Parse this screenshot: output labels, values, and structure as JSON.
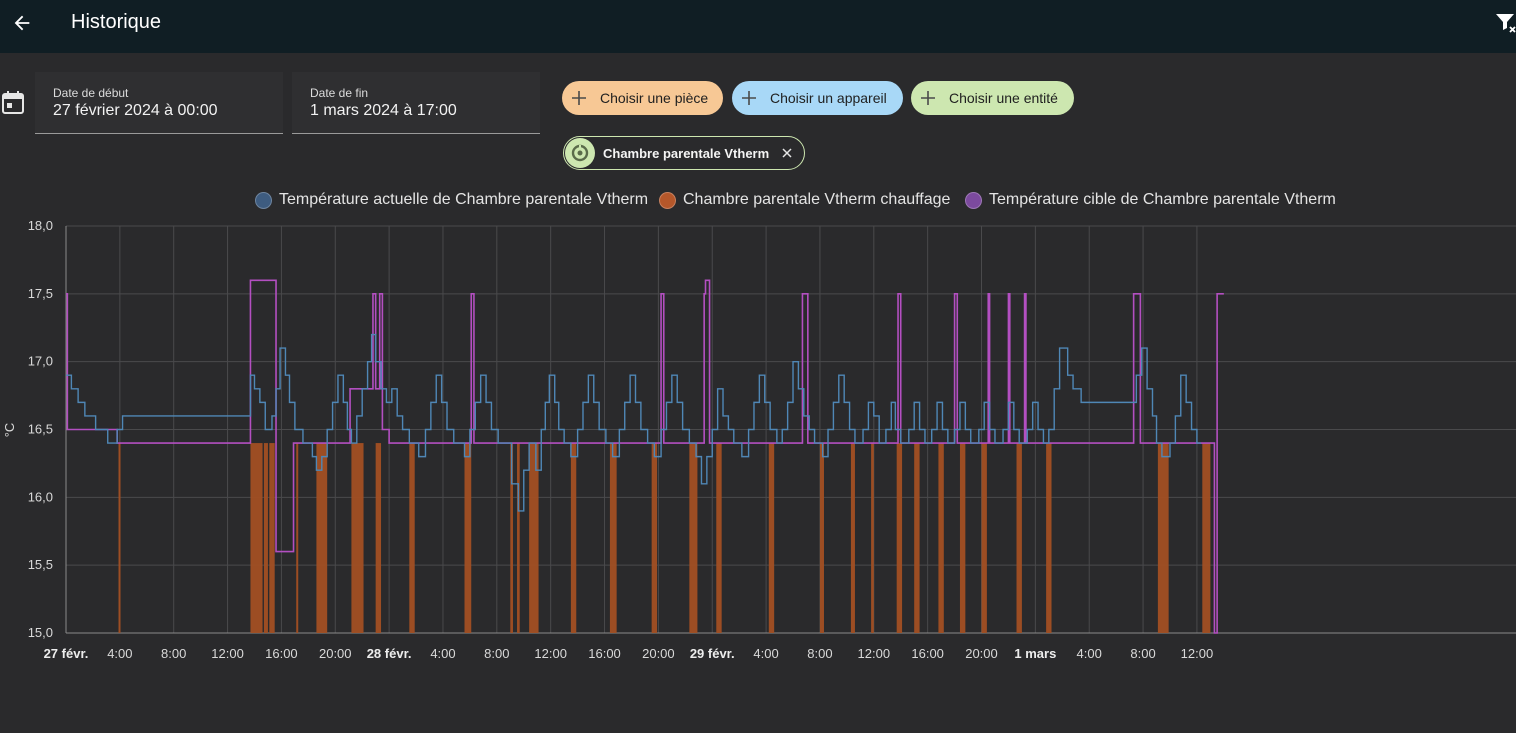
{
  "header": {
    "title": "Historique"
  },
  "date_start": {
    "label": "Date de début",
    "value": "27 février 2024 à 00:00"
  },
  "date_end": {
    "label": "Date de fin",
    "value": "1 mars 2024 à 17:00"
  },
  "pickers": {
    "room": "Choisir une pièce",
    "device": "Choisir un appareil",
    "entity": "Choisir une entité"
  },
  "selected": {
    "name": "Chambre parentale Vtherm"
  },
  "legend": [
    {
      "label": "Température actuelle de Chambre parentale Vtherm",
      "color": "#3e5c80"
    },
    {
      "label": "Chambre parentale Vtherm chauffage",
      "color": "#b5572a"
    },
    {
      "label": "Température cible de Chambre parentale Vtherm",
      "color": "#7c4a9e"
    }
  ],
  "colors": {
    "topbar": "#101e24",
    "actual_line": "#4f87b6",
    "heating_fill": "#a24f23",
    "target_line": "#b34fc1",
    "chip_room": "#f7c895",
    "chip_device": "#a8d8f7",
    "chip_entity": "#cde7b0"
  },
  "chart_data": {
    "type": "line",
    "ylabel": "°C",
    "ylim": [
      15.0,
      18.0
    ],
    "xlim_hours": [
      0,
      107.7
    ],
    "y_ticks": [
      "15,0",
      "15,5",
      "16,0",
      "16,5",
      "17,0",
      "17,5",
      "18,0"
    ],
    "x_ticks": [
      {
        "h": 0,
        "label": "27 févr.",
        "major": true
      },
      {
        "h": 4,
        "label": "4:00"
      },
      {
        "h": 8,
        "label": "8:00"
      },
      {
        "h": 12,
        "label": "12:00"
      },
      {
        "h": 16,
        "label": "16:00"
      },
      {
        "h": 20,
        "label": "20:00"
      },
      {
        "h": 24,
        "label": "28 févr.",
        "major": true
      },
      {
        "h": 28,
        "label": "4:00"
      },
      {
        "h": 32,
        "label": "8:00"
      },
      {
        "h": 36,
        "label": "12:00"
      },
      {
        "h": 40,
        "label": "16:00"
      },
      {
        "h": 44,
        "label": "20:00"
      },
      {
        "h": 48,
        "label": "29 févr.",
        "major": true
      },
      {
        "h": 52,
        "label": "4:00"
      },
      {
        "h": 56,
        "label": "8:00"
      },
      {
        "h": 60,
        "label": "12:00"
      },
      {
        "h": 64,
        "label": "16:00"
      },
      {
        "h": 68,
        "label": "20:00"
      },
      {
        "h": 72,
        "label": "1 mars",
        "major": true
      },
      {
        "h": 76,
        "label": "4:00"
      },
      {
        "h": 80,
        "label": "8:00"
      },
      {
        "h": 84,
        "label": "12:00"
      }
    ],
    "series": [
      {
        "name": "Température actuelle de Chambre parentale Vtherm",
        "kind": "step",
        "points": [
          [
            0,
            16.9
          ],
          [
            0.4,
            16.8
          ],
          [
            0.9,
            16.7
          ],
          [
            1.4,
            16.6
          ],
          [
            2.2,
            16.5
          ],
          [
            3.1,
            16.4
          ],
          [
            3.8,
            16.5
          ],
          [
            4.2,
            16.6
          ],
          [
            13.7,
            16.9
          ],
          [
            14.0,
            16.8
          ],
          [
            14.4,
            16.7
          ],
          [
            14.8,
            16.5
          ],
          [
            15.3,
            16.6
          ],
          [
            15.6,
            16.8
          ],
          [
            15.9,
            17.1
          ],
          [
            16.3,
            16.9
          ],
          [
            16.6,
            16.7
          ],
          [
            17.0,
            16.5
          ],
          [
            17.6,
            16.4
          ],
          [
            18.3,
            16.3
          ],
          [
            18.6,
            16.2
          ],
          [
            19.0,
            16.3
          ],
          [
            19.4,
            16.5
          ],
          [
            19.8,
            16.7
          ],
          [
            20.2,
            16.9
          ],
          [
            20.6,
            16.7
          ],
          [
            20.9,
            16.5
          ],
          [
            21.2,
            16.4
          ],
          [
            21.6,
            16.6
          ],
          [
            22.0,
            16.8
          ],
          [
            22.4,
            17.0
          ],
          [
            22.7,
            17.2
          ],
          [
            23.0,
            17.0
          ],
          [
            23.4,
            16.8
          ],
          [
            23.8,
            16.7
          ],
          [
            24.2,
            16.8
          ],
          [
            24.6,
            16.6
          ],
          [
            25.0,
            16.5
          ],
          [
            25.5,
            16.4
          ],
          [
            26.2,
            16.3
          ],
          [
            26.7,
            16.5
          ],
          [
            27.1,
            16.7
          ],
          [
            27.5,
            16.9
          ],
          [
            27.9,
            16.7
          ],
          [
            28.3,
            16.5
          ],
          [
            28.8,
            16.4
          ],
          [
            29.6,
            16.3
          ],
          [
            30.0,
            16.5
          ],
          [
            30.4,
            16.7
          ],
          [
            30.8,
            16.9
          ],
          [
            31.2,
            16.7
          ],
          [
            31.6,
            16.5
          ],
          [
            32.1,
            16.4
          ],
          [
            33.1,
            16.1
          ],
          [
            33.6,
            15.9
          ],
          [
            34.0,
            16.2
          ],
          [
            34.4,
            16.4
          ],
          [
            34.9,
            16.2
          ],
          [
            35.3,
            16.5
          ],
          [
            35.6,
            16.7
          ],
          [
            35.9,
            16.9
          ],
          [
            36.3,
            16.7
          ],
          [
            36.6,
            16.5
          ],
          [
            37.0,
            16.4
          ],
          [
            37.5,
            16.3
          ],
          [
            38.0,
            16.5
          ],
          [
            38.4,
            16.7
          ],
          [
            38.8,
            16.9
          ],
          [
            39.2,
            16.7
          ],
          [
            39.6,
            16.5
          ],
          [
            40.1,
            16.4
          ],
          [
            40.6,
            16.3
          ],
          [
            41.1,
            16.5
          ],
          [
            41.5,
            16.7
          ],
          [
            41.9,
            16.9
          ],
          [
            42.3,
            16.7
          ],
          [
            42.7,
            16.5
          ],
          [
            43.2,
            16.4
          ],
          [
            43.7,
            16.3
          ],
          [
            44.2,
            16.5
          ],
          [
            44.6,
            16.7
          ],
          [
            45.0,
            16.9
          ],
          [
            45.4,
            16.7
          ],
          [
            45.8,
            16.5
          ],
          [
            46.3,
            16.4
          ],
          [
            46.8,
            16.3
          ],
          [
            47.2,
            16.1
          ],
          [
            47.6,
            16.3
          ],
          [
            48.0,
            16.5
          ],
          [
            48.4,
            16.8
          ],
          [
            48.8,
            16.6
          ],
          [
            49.2,
            16.5
          ],
          [
            49.6,
            16.4
          ],
          [
            50.2,
            16.3
          ],
          [
            50.7,
            16.5
          ],
          [
            51.1,
            16.7
          ],
          [
            51.5,
            16.9
          ],
          [
            51.9,
            16.7
          ],
          [
            52.3,
            16.5
          ],
          [
            52.8,
            16.4
          ],
          [
            53.2,
            16.5
          ],
          [
            53.6,
            16.7
          ],
          [
            54.0,
            17.0
          ],
          [
            54.4,
            16.8
          ],
          [
            54.8,
            16.6
          ],
          [
            55.2,
            16.5
          ],
          [
            55.6,
            16.4
          ],
          [
            56.2,
            16.3
          ],
          [
            56.6,
            16.5
          ],
          [
            57.0,
            16.7
          ],
          [
            57.4,
            16.9
          ],
          [
            57.8,
            16.7
          ],
          [
            58.2,
            16.5
          ],
          [
            58.6,
            16.4
          ],
          [
            59.2,
            16.5
          ],
          [
            59.6,
            16.7
          ],
          [
            60.0,
            16.6
          ],
          [
            60.4,
            16.4
          ],
          [
            60.9,
            16.5
          ],
          [
            61.3,
            16.7
          ],
          [
            61.6,
            16.5
          ],
          [
            62.0,
            16.4
          ],
          [
            62.6,
            16.5
          ],
          [
            63.0,
            16.7
          ],
          [
            63.4,
            16.5
          ],
          [
            63.8,
            16.4
          ],
          [
            64.3,
            16.5
          ],
          [
            64.7,
            16.7
          ],
          [
            65.1,
            16.5
          ],
          [
            65.5,
            16.4
          ],
          [
            66.0,
            16.5
          ],
          [
            66.4,
            16.7
          ],
          [
            66.8,
            16.5
          ],
          [
            67.2,
            16.4
          ],
          [
            67.8,
            16.5
          ],
          [
            68.2,
            16.7
          ],
          [
            68.6,
            16.5
          ],
          [
            69.0,
            16.4
          ],
          [
            69.6,
            16.5
          ],
          [
            70.0,
            16.7
          ],
          [
            70.4,
            16.5
          ],
          [
            70.8,
            16.4
          ],
          [
            71.4,
            16.5
          ],
          [
            71.8,
            16.7
          ],
          [
            72.2,
            16.5
          ],
          [
            72.6,
            16.4
          ],
          [
            73.0,
            16.5
          ],
          [
            73.4,
            16.8
          ],
          [
            73.8,
            17.1
          ],
          [
            74.4,
            16.9
          ],
          [
            74.8,
            16.8
          ],
          [
            75.4,
            16.7
          ],
          [
            79.5,
            16.9
          ],
          [
            79.9,
            17.1
          ],
          [
            80.3,
            16.8
          ],
          [
            80.7,
            16.6
          ],
          [
            81.0,
            16.4
          ],
          [
            81.4,
            16.3
          ],
          [
            82.0,
            16.4
          ],
          [
            82.4,
            16.6
          ],
          [
            82.8,
            16.9
          ],
          [
            83.2,
            16.7
          ],
          [
            83.6,
            16.5
          ],
          [
            84.0,
            16.4
          ]
        ]
      },
      {
        "name": "Chambre parentale Vtherm chauffage",
        "kind": "fill",
        "intervals": [
          [
            3.9,
            4.0
          ],
          [
            13.7,
            14.6
          ],
          [
            14.7,
            15.0
          ],
          [
            15.1,
            15.5
          ],
          [
            17.1,
            17.2
          ],
          [
            18.6,
            19.4
          ],
          [
            21.2,
            22.1
          ],
          [
            23.0,
            23.4
          ],
          [
            25.5,
            25.9
          ],
          [
            29.6,
            30.1
          ],
          [
            33.0,
            33.2
          ],
          [
            33.5,
            33.7
          ],
          [
            34.4,
            35.1
          ],
          [
            37.5,
            37.9
          ],
          [
            40.4,
            40.9
          ],
          [
            43.5,
            43.9
          ],
          [
            46.3,
            46.9
          ],
          [
            48.3,
            48.7
          ],
          [
            52.2,
            52.6
          ],
          [
            56.0,
            56.3
          ],
          [
            58.3,
            58.6
          ],
          [
            59.8,
            60.0
          ],
          [
            61.7,
            62.1
          ],
          [
            63.0,
            63.4
          ],
          [
            64.8,
            65.2
          ],
          [
            66.4,
            66.8
          ],
          [
            68.0,
            68.4
          ],
          [
            70.6,
            71.0
          ],
          [
            72.8,
            73.2
          ],
          [
            81.1,
            81.9
          ],
          [
            84.4,
            85.0
          ]
        ]
      },
      {
        "name": "Température cible de Chambre parentale Vtherm",
        "kind": "step",
        "points": [
          [
            0,
            17.5
          ],
          [
            0.1,
            16.5
          ],
          [
            3.8,
            16.4
          ],
          [
            13.7,
            17.6
          ],
          [
            15.6,
            15.6
          ],
          [
            16.9,
            16.4
          ],
          [
            21.1,
            16.8
          ],
          [
            22.8,
            17.5
          ],
          [
            23.0,
            16.8
          ],
          [
            23.3,
            17.5
          ],
          [
            23.5,
            16.5
          ],
          [
            24.0,
            16.4
          ],
          [
            30.1,
            17.5
          ],
          [
            30.3,
            16.4
          ],
          [
            44.2,
            17.5
          ],
          [
            44.4,
            16.4
          ],
          [
            47.4,
            17.5
          ],
          [
            47.5,
            17.6
          ],
          [
            47.8,
            16.4
          ],
          [
            54.7,
            17.5
          ],
          [
            55.1,
            16.4
          ],
          [
            61.8,
            17.5
          ],
          [
            62.0,
            16.4
          ],
          [
            66.0,
            17.5
          ],
          [
            66.2,
            16.4
          ],
          [
            68.5,
            17.5
          ],
          [
            68.6,
            16.4
          ],
          [
            70.0,
            17.5
          ],
          [
            70.1,
            16.4
          ],
          [
            71.2,
            17.5
          ],
          [
            71.3,
            16.4
          ],
          [
            79.3,
            17.5
          ],
          [
            79.8,
            16.4
          ],
          [
            85.3,
            15.0
          ],
          [
            85.5,
            17.5
          ],
          [
            85.7,
            17.5
          ]
        ]
      }
    ]
  }
}
